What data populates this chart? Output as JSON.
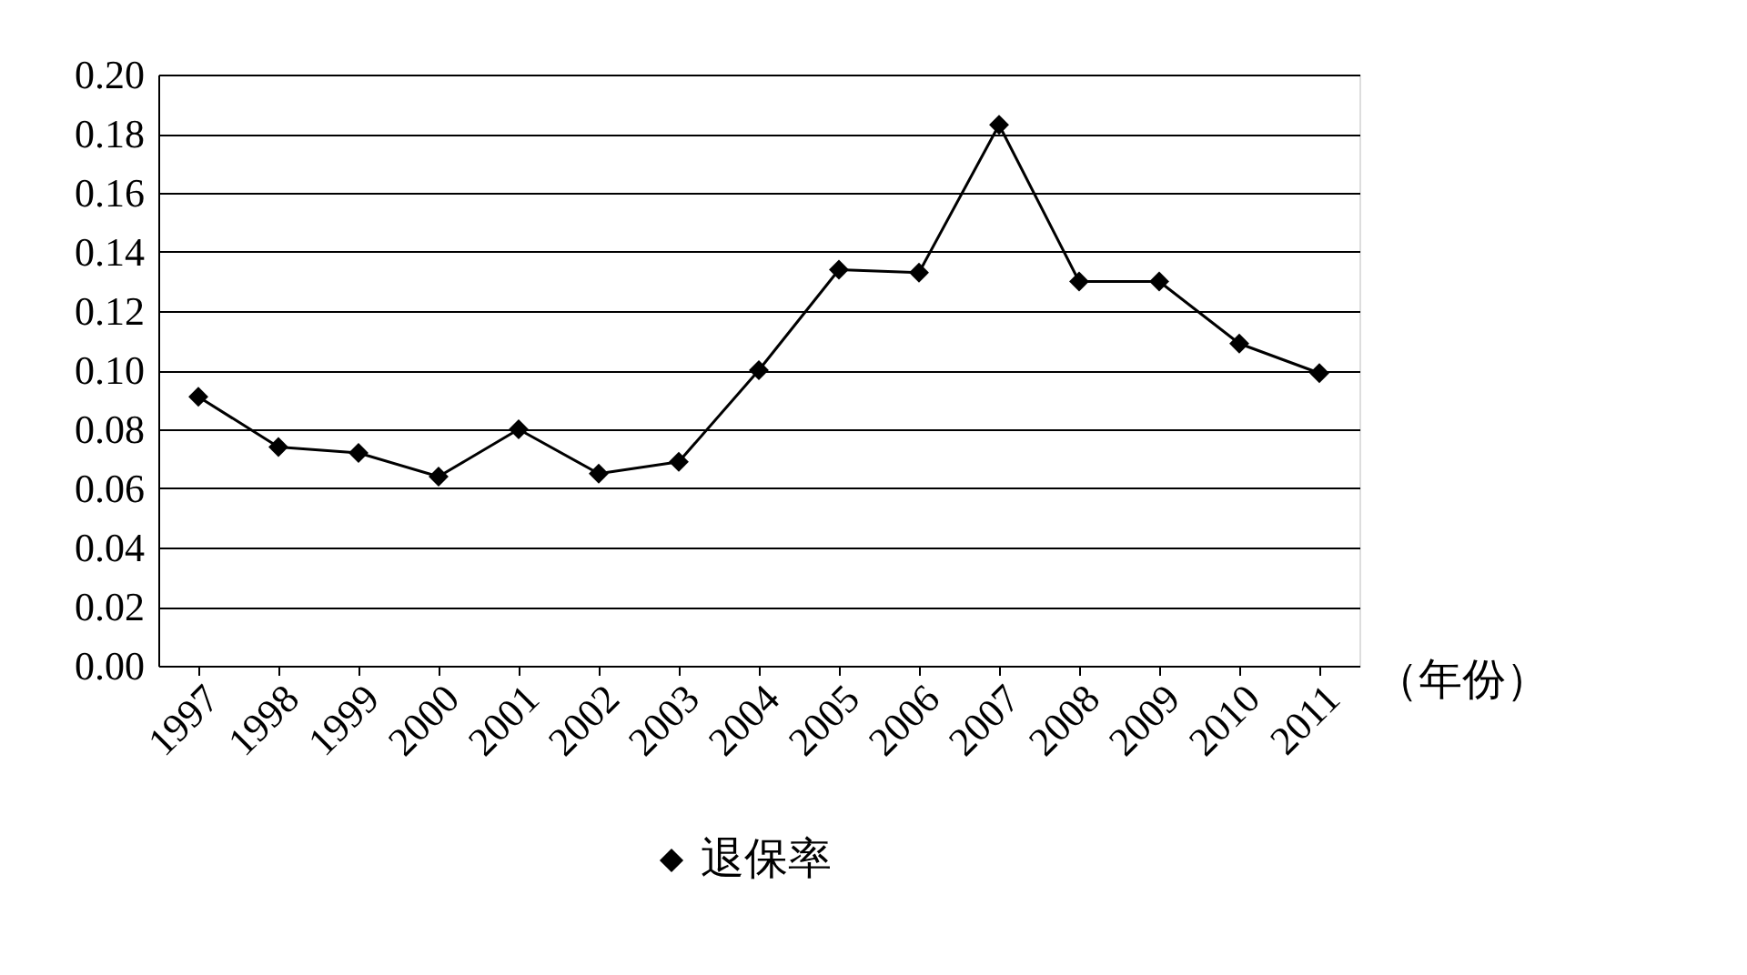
{
  "chart_data": {
    "type": "line",
    "xlabel": "（年份）",
    "categories": [
      "1997",
      "1998",
      "1999",
      "2000",
      "2001",
      "2002",
      "2003",
      "2004",
      "2005",
      "2006",
      "2007",
      "2008",
      "2009",
      "2010",
      "2011"
    ],
    "series": [
      {
        "name": "退保率",
        "color": "#000000",
        "values": [
          0.091,
          0.074,
          0.072,
          0.064,
          0.08,
          0.065,
          0.069,
          0.1,
          0.134,
          0.133,
          0.183,
          0.13,
          0.13,
          0.109,
          0.099
        ]
      }
    ],
    "ylim": [
      0,
      0.2
    ],
    "yticks": [
      {
        "value": 0,
        "label": "0.00"
      },
      {
        "value": 0.02,
        "label": "0.02"
      },
      {
        "value": 0.04,
        "label": "0.04"
      },
      {
        "value": 0.06,
        "label": "0.06"
      },
      {
        "value": 0.08,
        "label": "0.08"
      },
      {
        "value": 0.1,
        "label": "0.10"
      },
      {
        "value": 0.12,
        "label": "0.12"
      },
      {
        "value": 0.14,
        "label": "0.14"
      },
      {
        "value": 0.16,
        "label": "0.16"
      },
      {
        "value": 0.18,
        "label": "0.18"
      },
      {
        "value": 0.2,
        "label": "0.20"
      }
    ],
    "grid": "y",
    "legend": "bottom",
    "marker": "diamond",
    "line_style": "solid"
  }
}
